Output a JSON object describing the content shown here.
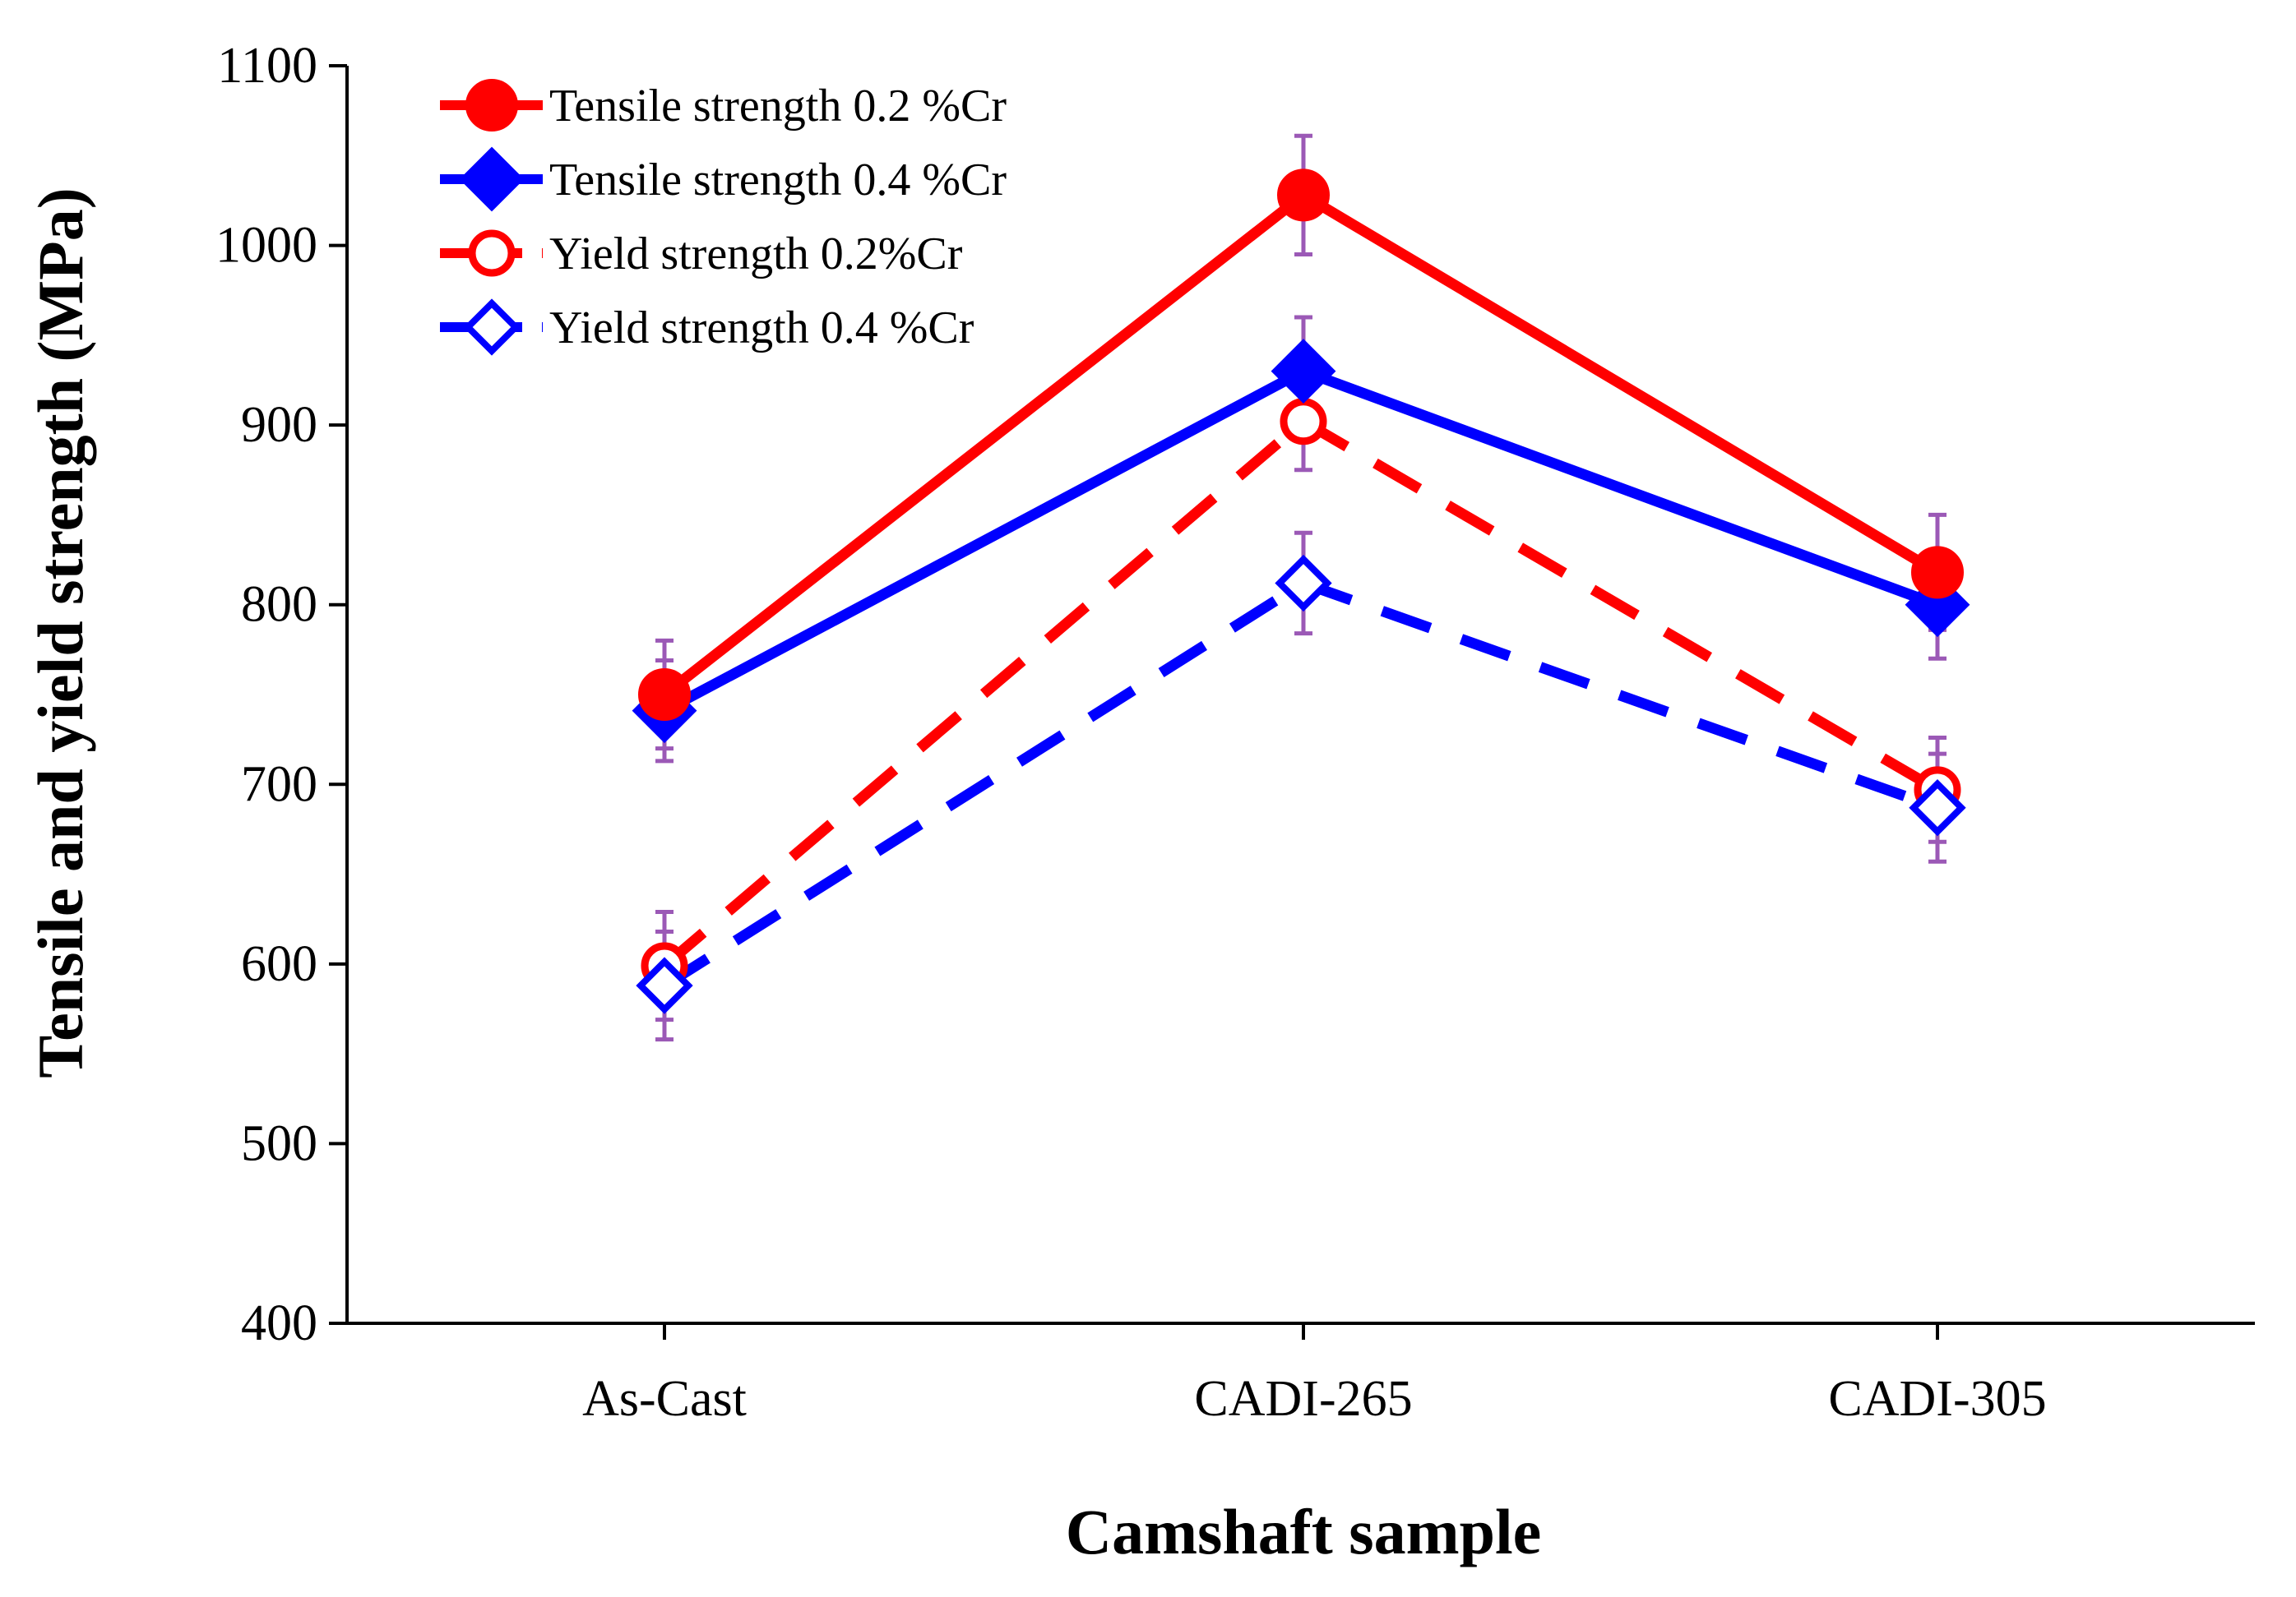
{
  "chart_data": {
    "type": "line",
    "title": "",
    "xlabel": "Camshaft sample",
    "ylabel": "Tensile and yield strength (MPa)",
    "categories": [
      "As-Cast",
      "CADI-265",
      "CADI-305"
    ],
    "ylim": [
      400,
      1100
    ],
    "yticks": [
      400,
      500,
      600,
      700,
      800,
      900,
      1000,
      1100
    ],
    "ytick_labels": [
      "400",
      "500",
      "600",
      "700",
      "800",
      "900",
      "1000",
      "1100"
    ],
    "grid": false,
    "legend_position": "top-left",
    "error_bar_color": "#9b59b6",
    "series": [
      {
        "name": "Tensile strength 0.2 %Cr",
        "values": [
          750,
          1028,
          818
        ],
        "errors": [
          30,
          33,
          32
        ],
        "color": "#ff0000",
        "line_style": "solid",
        "marker": "filled-circle"
      },
      {
        "name": "Tensile strength 0.4 %Cr",
        "values": [
          741,
          930,
          800
        ],
        "errors": [
          28,
          30,
          30
        ],
        "color": "#0000ff",
        "line_style": "solid",
        "marker": "filled-diamond"
      },
      {
        "name": "Yield strength 0.2%Cr",
        "values": [
          599,
          902,
          697
        ],
        "errors": [
          30,
          27,
          29
        ],
        "color": "#ff0000",
        "line_style": "dashed",
        "marker": "open-circle"
      },
      {
        "name": "Yield strength 0.4 %Cr",
        "values": [
          588,
          812,
          687
        ],
        "errors": [
          30,
          28,
          30
        ],
        "color": "#0000ff",
        "line_style": "dashed",
        "marker": "open-diamond"
      }
    ]
  }
}
